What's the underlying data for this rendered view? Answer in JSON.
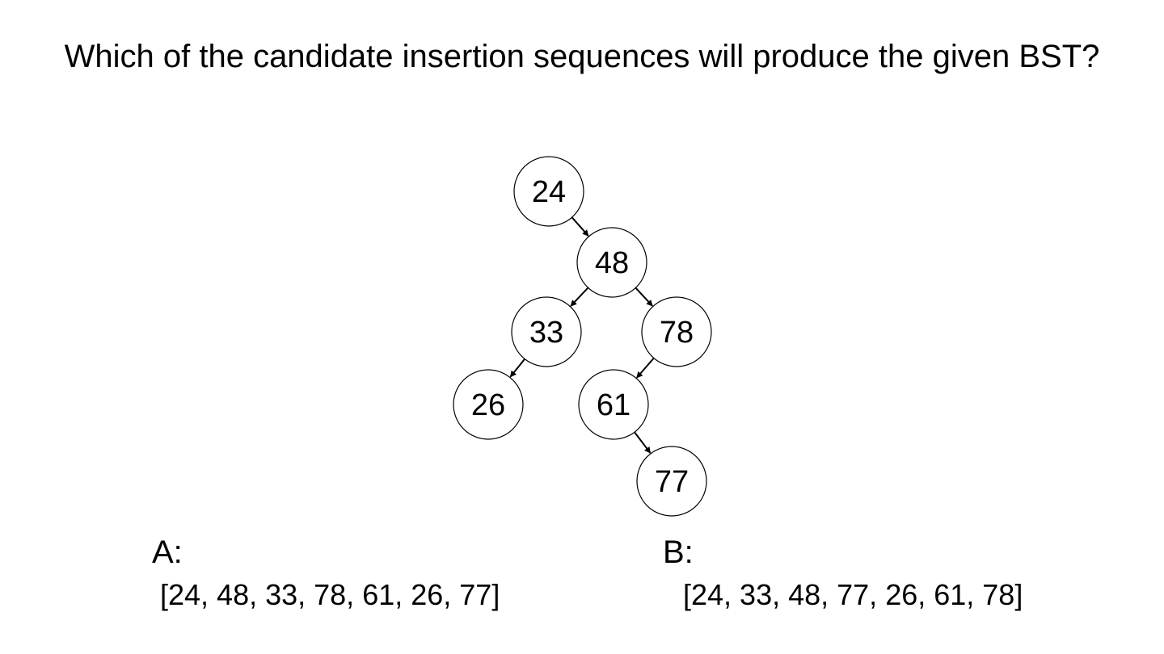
{
  "question": {
    "text": "Which of the candidate insertion sequences will produce the given BST?"
  },
  "tree": {
    "nodes": [
      {
        "id": "n24",
        "label": "24"
      },
      {
        "id": "n48",
        "label": "48"
      },
      {
        "id": "n33",
        "label": "33"
      },
      {
        "id": "n78",
        "label": "78"
      },
      {
        "id": "n26",
        "label": "26"
      },
      {
        "id": "n61",
        "label": "61"
      },
      {
        "id": "n77",
        "label": "77"
      }
    ],
    "edges": [
      {
        "from": "n24",
        "to": "n48"
      },
      {
        "from": "n48",
        "to": "n33"
      },
      {
        "from": "n48",
        "to": "n78"
      },
      {
        "from": "n33",
        "to": "n26"
      },
      {
        "from": "n78",
        "to": "n61"
      },
      {
        "from": "n61",
        "to": "n77"
      }
    ]
  },
  "options": {
    "a": {
      "letter": "A:",
      "sequence": "[24, 48, 33, 78, 61, 26, 77]"
    },
    "b": {
      "letter": "B:",
      "sequence": "[24, 33, 48, 77, 26, 61, 78]"
    }
  }
}
